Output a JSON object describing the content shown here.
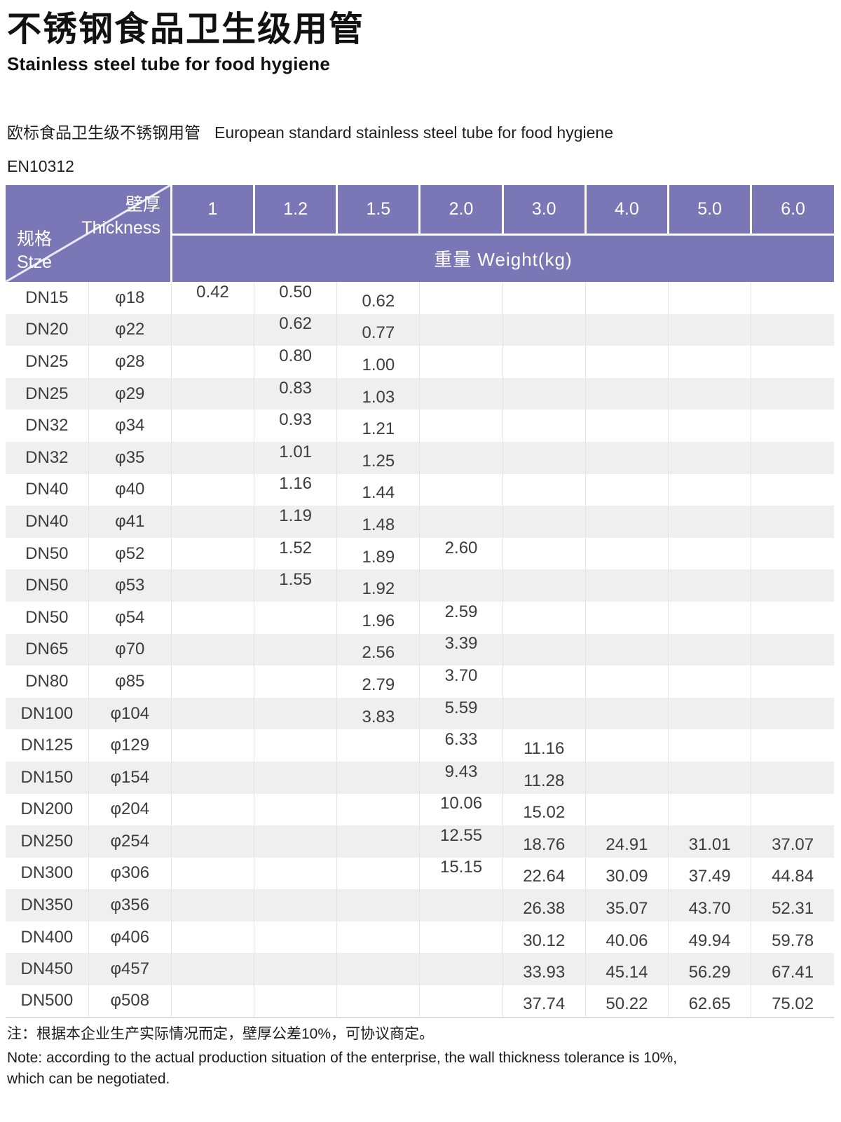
{
  "header": {
    "title_zh": "不锈钢食品卫生级用管",
    "title_en": "Stainless steel tube for food hygiene",
    "subtitle_zh": "欧标食品卫生级不锈钢用管",
    "subtitle_en": "European standard stainless steel tube for food hygiene",
    "standard": "EN10312"
  },
  "table": {
    "corner_top_zh": "壁厚",
    "corner_top_en": "Thickness",
    "corner_bottom_zh": "规格",
    "corner_bottom_en": "Stze",
    "thickness_columns": [
      "1",
      "1.2",
      "1.5",
      "2.0",
      "3.0",
      "4.0",
      "5.0",
      "6.0"
    ],
    "weight_header": "重量 Weight(kg)",
    "rows": [
      {
        "size": "DN15",
        "diameter": "φ18",
        "weights": [
          "0.42",
          "0.50",
          "0.62",
          "",
          "",
          "",
          "",
          ""
        ]
      },
      {
        "size": "DN20",
        "diameter": "φ22",
        "weights": [
          "",
          "0.62",
          "0.77",
          "",
          "",
          "",
          "",
          ""
        ]
      },
      {
        "size": "DN25",
        "diameter": "φ28",
        "weights": [
          "",
          "0.80",
          "1.00",
          "",
          "",
          "",
          "",
          ""
        ]
      },
      {
        "size": "DN25",
        "diameter": "φ29",
        "weights": [
          "",
          "0.83",
          "1.03",
          "",
          "",
          "",
          "",
          ""
        ]
      },
      {
        "size": "DN32",
        "diameter": "φ34",
        "weights": [
          "",
          "0.93",
          "1.21",
          "",
          "",
          "",
          "",
          ""
        ]
      },
      {
        "size": "DN32",
        "diameter": "φ35",
        "weights": [
          "",
          "1.01",
          "1.25",
          "",
          "",
          "",
          "",
          ""
        ]
      },
      {
        "size": "DN40",
        "diameter": "φ40",
        "weights": [
          "",
          "1.16",
          "1.44",
          "",
          "",
          "",
          "",
          ""
        ]
      },
      {
        "size": "DN40",
        "diameter": "φ41",
        "weights": [
          "",
          "1.19",
          "1.48",
          "",
          "",
          "",
          "",
          ""
        ]
      },
      {
        "size": "DN50",
        "diameter": "φ52",
        "weights": [
          "",
          "1.52",
          "1.89",
          "2.60",
          "",
          "",
          "",
          ""
        ]
      },
      {
        "size": "DN50",
        "diameter": "φ53",
        "weights": [
          "",
          "1.55",
          "1.92",
          "",
          "",
          "",
          "",
          ""
        ]
      },
      {
        "size": "DN50",
        "diameter": "φ54",
        "weights": [
          "",
          "",
          "1.96",
          "2.59",
          "",
          "",
          "",
          ""
        ]
      },
      {
        "size": "DN65",
        "diameter": "φ70",
        "weights": [
          "",
          "",
          "2.56",
          "3.39",
          "",
          "",
          "",
          ""
        ]
      },
      {
        "size": "DN80",
        "diameter": "φ85",
        "weights": [
          "",
          "",
          "2.79",
          "3.70",
          "",
          "",
          "",
          ""
        ]
      },
      {
        "size": "DN100",
        "diameter": "φ104",
        "weights": [
          "",
          "",
          "3.83",
          "5.59",
          "",
          "",
          "",
          ""
        ]
      },
      {
        "size": "DN125",
        "diameter": "φ129",
        "weights": [
          "",
          "",
          "",
          "6.33",
          "11.16",
          "",
          "",
          ""
        ]
      },
      {
        "size": "DN150",
        "diameter": "φ154",
        "weights": [
          "",
          "",
          "",
          "9.43",
          "11.28",
          "",
          "",
          ""
        ]
      },
      {
        "size": "DN200",
        "diameter": "φ204",
        "weights": [
          "",
          "",
          "",
          "10.06",
          "15.02",
          "",
          "",
          ""
        ]
      },
      {
        "size": "DN250",
        "diameter": "φ254",
        "weights": [
          "",
          "",
          "",
          "12.55",
          "18.76",
          "24.91",
          "31.01",
          "37.07"
        ]
      },
      {
        "size": "DN300",
        "diameter": "φ306",
        "weights": [
          "",
          "",
          "",
          "15.15",
          "22.64",
          "30.09",
          "37.49",
          "44.84"
        ]
      },
      {
        "size": "DN350",
        "diameter": "φ356",
        "weights": [
          "",
          "",
          "",
          "",
          "26.38",
          "35.07",
          "43.70",
          "52.31"
        ]
      },
      {
        "size": "DN400",
        "diameter": "φ406",
        "weights": [
          "",
          "",
          "",
          "",
          "30.12",
          "40.06",
          "49.94",
          "59.78"
        ]
      },
      {
        "size": "DN450",
        "diameter": "φ457",
        "weights": [
          "",
          "",
          "",
          "",
          "33.93",
          "45.14",
          "56.29",
          "67.41"
        ]
      },
      {
        "size": "DN500",
        "diameter": "φ508",
        "weights": [
          "",
          "",
          "",
          "",
          "37.74",
          "50.22",
          "62.65",
          "75.02"
        ]
      }
    ]
  },
  "notes": {
    "zh": "注：根据本企业生产实际情况而定，壁厚公差10%，可协议商定。",
    "en_line1": "Note: according to the actual production situation of the enterprise, the wall thickness tolerance is 10%,",
    "en_line2": "which can be negotiated."
  },
  "colors": {
    "header_purple": "#7b76b5",
    "row_alt_gray": "#efefef",
    "grid_line": "#e3e3e3",
    "body_text": "#3c3c3c"
  }
}
